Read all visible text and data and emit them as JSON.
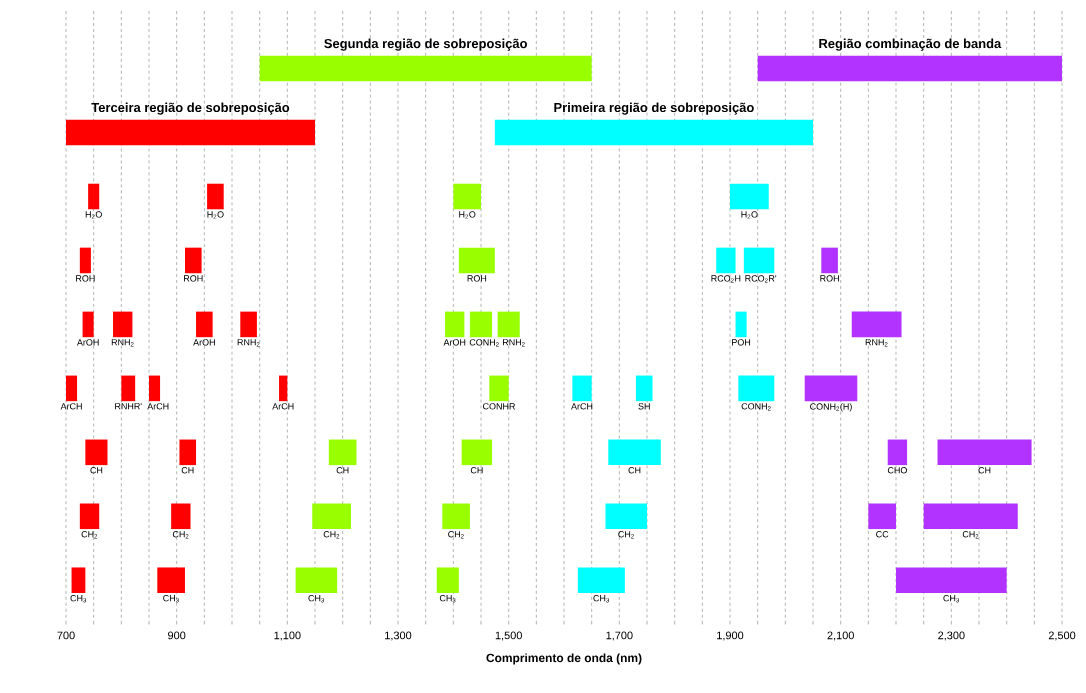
{
  "chart_data": {
    "type": "bar",
    "orientation": "horizontal",
    "xlabel": "Comprimento de onda (nm)",
    "categories": [
      null,
      null,
      null,
      null,
      null,
      null,
      null,
      null,
      null
    ],
    "xlim": [
      700,
      2500
    ],
    "xticks": [
      700,
      {
        "value": 750,
        "label": null
      },
      {
        "value": 800,
        "label": null
      },
      {
        "value": 850,
        "label": null
      },
      900,
      {
        "value": 950,
        "label": null
      },
      {
        "value": 1000,
        "label": null
      },
      {
        "value": 1050,
        "label": null
      },
      {
        "value": 1100,
        "label": "1,100"
      },
      {
        "value": 1150,
        "label": null
      },
      {
        "value": 1200,
        "label": null
      },
      {
        "value": 1250,
        "label": null
      },
      {
        "value": 1300,
        "label": "1,300"
      },
      {
        "value": 1350,
        "label": null
      },
      {
        "value": 1400,
        "label": null
      },
      {
        "value": 1450,
        "label": null
      },
      {
        "value": 1500,
        "label": "1,500"
      },
      {
        "value": 1550,
        "label": null
      },
      {
        "value": 1600,
        "label": null
      },
      {
        "value": 1650,
        "label": null
      },
      {
        "value": 1700,
        "label": "1,700"
      },
      {
        "value": 1750,
        "label": null
      },
      {
        "value": 1800,
        "label": null
      },
      {
        "value": 1850,
        "label": null
      },
      {
        "value": 1900,
        "label": "1,900"
      },
      {
        "value": 1950,
        "label": null
      },
      {
        "value": 2000,
        "label": null
      },
      {
        "value": 2050,
        "label": null
      },
      {
        "value": 2100,
        "label": "2,100"
      },
      {
        "value": 2150,
        "label": null
      },
      {
        "value": 2200,
        "label": null
      },
      {
        "value": 2250,
        "label": null
      },
      {
        "value": 2300,
        "label": "2,300"
      },
      {
        "value": 2350,
        "label": null
      },
      {
        "value": 2400,
        "label": null
      },
      {
        "value": 2450,
        "label": null
      },
      {
        "value": 2500,
        "label": "2,500"
      }
    ],
    "grid": "x",
    "series": [
      {
        "name": "Segunda região de sobreposição",
        "color": "#99ff00",
        "values": [
          600,
          null,
          null,
          null,
          null,
          null,
          null,
          null,
          null
        ],
        "base": [
          1050,
          null,
          null,
          null,
          null,
          null,
          null,
          null,
          null
        ]
      },
      {
        "name": "Região combinação de banda",
        "color": "#b233ff",
        "values": [
          550,
          null,
          null,
          null,
          null,
          null,
          null,
          null,
          null
        ],
        "base": [
          1950,
          null,
          null,
          null,
          null,
          null,
          null,
          null,
          null
        ]
      },
      {
        "name": "Terceira região de sobreposição",
        "color": "#ff0000",
        "values": [
          null,
          450,
          null,
          null,
          null,
          null,
          null,
          null,
          null
        ],
        "base": [
          null,
          700,
          null,
          null,
          null,
          null,
          null,
          null,
          null
        ]
      },
      {
        "name": "Primeira região de sobreposição",
        "color": "#00ffff",
        "values": [
          null,
          575,
          null,
          null,
          null,
          null,
          null,
          null,
          null
        ],
        "base": [
          null,
          1475,
          null,
          null,
          null,
          null,
          null,
          null,
          null
        ]
      },
      {
        "name": "H$_{2}$O",
        "color": "#ff0000",
        "values": [
          null,
          null,
          20,
          null,
          null,
          null,
          null,
          null,
          null
        ],
        "base": [
          null,
          null,
          740,
          null,
          null,
          null,
          null,
          null,
          null
        ]
      },
      {
        "name": "H$_{2}$O",
        "color": "#ff0000",
        "values": [
          null,
          null,
          30,
          null,
          null,
          null,
          null,
          null,
          null
        ],
        "base": [
          null,
          null,
          955,
          null,
          null,
          null,
          null,
          null,
          null
        ]
      },
      {
        "name": "H$_{2}$O",
        "color": "#99ff00",
        "values": [
          null,
          null,
          50,
          null,
          null,
          null,
          null,
          null,
          null
        ],
        "base": [
          null,
          null,
          1400,
          null,
          null,
          null,
          null,
          null,
          null
        ]
      },
      {
        "name": "H$_{2}$O",
        "color": "#00ffff",
        "values": [
          null,
          null,
          70,
          null,
          null,
          null,
          null,
          null,
          null
        ],
        "base": [
          null,
          null,
          1900,
          null,
          null,
          null,
          null,
          null,
          null
        ]
      },
      {
        "name": "ROH",
        "color": "#ff0000",
        "values": [
          null,
          null,
          null,
          20,
          null,
          null,
          null,
          null,
          null
        ],
        "base": [
          null,
          null,
          null,
          725,
          null,
          null,
          null,
          null,
          null
        ]
      },
      {
        "name": "ROH",
        "color": "#ff0000",
        "values": [
          null,
          null,
          null,
          30,
          null,
          null,
          null,
          null,
          null
        ],
        "base": [
          null,
          null,
          null,
          915,
          null,
          null,
          null,
          null,
          null
        ]
      },
      {
        "name": "ROH",
        "color": "#99ff00",
        "values": [
          null,
          null,
          null,
          65,
          null,
          null,
          null,
          null,
          null
        ],
        "base": [
          null,
          null,
          null,
          1410,
          null,
          null,
          null,
          null,
          null
        ]
      },
      {
        "name": "RCO$_{2}$H",
        "color": "#00ffff",
        "values": [
          null,
          null,
          null,
          35,
          null,
          null,
          null,
          null,
          null
        ],
        "base": [
          null,
          null,
          null,
          1875,
          null,
          null,
          null,
          null,
          null
        ]
      },
      {
        "name": "RCO$_{2}$R'",
        "color": "#00ffff",
        "values": [
          null,
          null,
          null,
          55,
          null,
          null,
          null,
          null,
          null
        ],
        "base": [
          null,
          null,
          null,
          1925,
          null,
          null,
          null,
          null,
          null
        ]
      },
      {
        "name": "ROH",
        "color": "#b233ff",
        "values": [
          null,
          null,
          null,
          30,
          null,
          null,
          null,
          null,
          null
        ],
        "base": [
          null,
          null,
          null,
          2065,
          null,
          null,
          null,
          null,
          null
        ]
      },
      {
        "name": "ArOH",
        "color": "#ff0000",
        "values": [
          null,
          null,
          null,
          null,
          20,
          null,
          null,
          null,
          null
        ],
        "base": [
          null,
          null,
          null,
          null,
          730,
          null,
          null,
          null,
          null
        ]
      },
      {
        "name": "RNH$_{2}$",
        "color": "#ff0000",
        "values": [
          null,
          null,
          null,
          null,
          35,
          null,
          null,
          null,
          null
        ],
        "base": [
          null,
          null,
          null,
          null,
          785,
          null,
          null,
          null,
          null
        ]
      },
      {
        "name": "ArOH",
        "color": "#ff0000",
        "values": [
          null,
          null,
          null,
          null,
          30,
          null,
          null,
          null,
          null
        ],
        "base": [
          null,
          null,
          null,
          null,
          935,
          null,
          null,
          null,
          null
        ]
      },
      {
        "name": "RNH$_{2}$",
        "color": "#ff0000",
        "values": [
          null,
          null,
          null,
          null,
          30,
          null,
          null,
          null,
          null
        ],
        "base": [
          null,
          null,
          null,
          null,
          1015,
          null,
          null,
          null,
          null
        ]
      },
      {
        "name": "ArOH",
        "color": "#99ff00",
        "values": [
          null,
          null,
          null,
          null,
          35,
          null,
          null,
          null,
          null
        ],
        "base": [
          null,
          null,
          null,
          null,
          1385,
          null,
          null,
          null,
          null
        ]
      },
      {
        "name": "CONH$_{2}$",
        "color": "#99ff00",
        "values": [
          null,
          null,
          null,
          null,
          40,
          null,
          null,
          null,
          null
        ],
        "base": [
          null,
          null,
          null,
          null,
          1430,
          null,
          null,
          null,
          null
        ]
      },
      {
        "name": "RNH$_{2}$",
        "color": "#99ff00",
        "values": [
          null,
          null,
          null,
          null,
          40,
          null,
          null,
          null,
          null
        ],
        "base": [
          null,
          null,
          null,
          null,
          1480,
          null,
          null,
          null,
          null
        ]
      },
      {
        "name": "POH",
        "color": "#00ffff",
        "values": [
          null,
          null,
          null,
          null,
          20,
          null,
          null,
          null,
          null
        ],
        "base": [
          null,
          null,
          null,
          null,
          1910,
          null,
          null,
          null,
          null
        ]
      },
      {
        "name": "RNH$_{2}$",
        "color": "#b233ff",
        "values": [
          null,
          null,
          null,
          null,
          90,
          null,
          null,
          null,
          null
        ],
        "base": [
          null,
          null,
          null,
          null,
          2120,
          null,
          null,
          null,
          null
        ]
      },
      {
        "name": "ArCH",
        "color": "#ff0000",
        "values": [
          null,
          null,
          null,
          null,
          null,
          20,
          null,
          null,
          null
        ],
        "base": [
          null,
          null,
          null,
          null,
          null,
          700,
          null,
          null,
          null
        ]
      },
      {
        "name": "RNHR'",
        "color": "#ff0000",
        "values": [
          null,
          null,
          null,
          null,
          null,
          25,
          null,
          null,
          null
        ],
        "base": [
          null,
          null,
          null,
          null,
          null,
          800,
          null,
          null,
          null
        ]
      },
      {
        "name": "ArCH",
        "color": "#ff0000",
        "values": [
          null,
          null,
          null,
          null,
          null,
          20,
          null,
          null,
          null
        ],
        "base": [
          null,
          null,
          null,
          null,
          null,
          850,
          null,
          null,
          null
        ]
      },
      {
        "name": "ArCH",
        "color": "#ff0000",
        "values": [
          null,
          null,
          null,
          null,
          null,
          15,
          null,
          null,
          null
        ],
        "base": [
          null,
          null,
          null,
          null,
          null,
          1085,
          null,
          null,
          null
        ]
      },
      {
        "name": "CONHR",
        "color": "#99ff00",
        "values": [
          null,
          null,
          null,
          null,
          null,
          35,
          null,
          null,
          null
        ],
        "base": [
          null,
          null,
          null,
          null,
          null,
          1465,
          null,
          null,
          null
        ]
      },
      {
        "name": "ArCH",
        "color": "#00ffff",
        "values": [
          null,
          null,
          null,
          null,
          null,
          35,
          null,
          null,
          null
        ],
        "base": [
          null,
          null,
          null,
          null,
          null,
          1615,
          null,
          null,
          null
        ]
      },
      {
        "name": "SH",
        "color": "#00ffff",
        "values": [
          null,
          null,
          null,
          null,
          null,
          30,
          null,
          null,
          null
        ],
        "base": [
          null,
          null,
          null,
          null,
          null,
          1730,
          null,
          null,
          null
        ]
      },
      {
        "name": "CONH$_{2}$",
        "color": "#00ffff",
        "values": [
          null,
          null,
          null,
          null,
          null,
          65,
          null,
          null,
          null
        ],
        "base": [
          null,
          null,
          null,
          null,
          null,
          1915,
          null,
          null,
          null
        ]
      },
      {
        "name": "CONH$_{2}$(H)",
        "color": "#b233ff",
        "values": [
          null,
          null,
          null,
          null,
          null,
          95,
          null,
          null,
          null
        ],
        "base": [
          null,
          null,
          null,
          null,
          null,
          2035,
          null,
          null,
          null
        ]
      },
      {
        "name": "CH",
        "color": "#ff0000",
        "values": [
          null,
          null,
          null,
          null,
          null,
          null,
          40,
          null,
          null
        ],
        "base": [
          null,
          null,
          null,
          null,
          null,
          null,
          735,
          null,
          null
        ]
      },
      {
        "name": "CH",
        "color": "#ff0000",
        "values": [
          null,
          null,
          null,
          null,
          null,
          null,
          30,
          null,
          null
        ],
        "base": [
          null,
          null,
          null,
          null,
          null,
          null,
          905,
          null,
          null
        ]
      },
      {
        "name": "CH",
        "color": "#99ff00",
        "values": [
          null,
          null,
          null,
          null,
          null,
          null,
          50,
          null,
          null
        ],
        "base": [
          null,
          null,
          null,
          null,
          null,
          null,
          1175,
          null,
          null
        ]
      },
      {
        "name": "CH",
        "color": "#99ff00",
        "values": [
          null,
          null,
          null,
          null,
          null,
          null,
          55,
          null,
          null
        ],
        "base": [
          null,
          null,
          null,
          null,
          null,
          null,
          1415,
          null,
          null
        ]
      },
      {
        "name": "CH",
        "color": "#00ffff",
        "values": [
          null,
          null,
          null,
          null,
          null,
          null,
          95,
          null,
          null
        ],
        "base": [
          null,
          null,
          null,
          null,
          null,
          null,
          1680,
          null,
          null
        ]
      },
      {
        "name": "CHO",
        "color": "#b233ff",
        "values": [
          null,
          null,
          null,
          null,
          null,
          null,
          35,
          null,
          null
        ],
        "base": [
          null,
          null,
          null,
          null,
          null,
          null,
          2185,
          null,
          null
        ]
      },
      {
        "name": "CH",
        "color": "#b233ff",
        "values": [
          null,
          null,
          null,
          null,
          null,
          null,
          170,
          null,
          null
        ],
        "base": [
          null,
          null,
          null,
          null,
          null,
          null,
          2275,
          null,
          null
        ]
      },
      {
        "name": "CH$_{2}$",
        "color": "#ff0000",
        "values": [
          null,
          null,
          null,
          null,
          null,
          null,
          null,
          35,
          null
        ],
        "base": [
          null,
          null,
          null,
          null,
          null,
          null,
          null,
          725,
          null
        ]
      },
      {
        "name": "CH$_{2}$",
        "color": "#ff0000",
        "values": [
          null,
          null,
          null,
          null,
          null,
          null,
          null,
          35,
          null
        ],
        "base": [
          null,
          null,
          null,
          null,
          null,
          null,
          null,
          890,
          null
        ]
      },
      {
        "name": "CH$_{2}$",
        "color": "#99ff00",
        "values": [
          null,
          null,
          null,
          null,
          null,
          null,
          null,
          70,
          null
        ],
        "base": [
          null,
          null,
          null,
          null,
          null,
          null,
          null,
          1145,
          null
        ]
      },
      {
        "name": "CH$_{2}$",
        "color": "#99ff00",
        "values": [
          null,
          null,
          null,
          null,
          null,
          null,
          null,
          50,
          null
        ],
        "base": [
          null,
          null,
          null,
          null,
          null,
          null,
          null,
          1380,
          null
        ]
      },
      {
        "name": "CH$_{2}$",
        "color": "#00ffff",
        "values": [
          null,
          null,
          null,
          null,
          null,
          null,
          null,
          75,
          null
        ],
        "base": [
          null,
          null,
          null,
          null,
          null,
          null,
          null,
          1675,
          null
        ]
      },
      {
        "name": "CC",
        "color": "#b233ff",
        "values": [
          null,
          null,
          null,
          null,
          null,
          null,
          null,
          50,
          null
        ],
        "base": [
          null,
          null,
          null,
          null,
          null,
          null,
          null,
          2150,
          null
        ]
      },
      {
        "name": "CH$_{2}$",
        "color": "#b233ff",
        "values": [
          null,
          null,
          null,
          null,
          null,
          null,
          null,
          170,
          null
        ],
        "base": [
          null,
          null,
          null,
          null,
          null,
          null,
          null,
          2250,
          null
        ]
      },
      {
        "name": "CH$_{3}$",
        "color": "#ff0000",
        "values": [
          null,
          null,
          null,
          null,
          null,
          null,
          null,
          null,
          25
        ],
        "base": [
          null,
          null,
          null,
          null,
          null,
          null,
          null,
          null,
          710
        ]
      },
      {
        "name": "CH$_{3}$",
        "color": "#ff0000",
        "values": [
          null,
          null,
          null,
          null,
          null,
          null,
          null,
          null,
          50
        ],
        "base": [
          null,
          null,
          null,
          null,
          null,
          null,
          null,
          null,
          865
        ]
      },
      {
        "name": "CH$_{3}$",
        "color": "#99ff00",
        "values": [
          null,
          null,
          null,
          null,
          null,
          null,
          null,
          null,
          75
        ],
        "base": [
          null,
          null,
          null,
          null,
          null,
          null,
          null,
          null,
          1115
        ]
      },
      {
        "name": "CH$_{3}$",
        "color": "#99ff00",
        "values": [
          null,
          null,
          null,
          null,
          null,
          null,
          null,
          null,
          40
        ],
        "base": [
          null,
          null,
          null,
          null,
          null,
          null,
          null,
          null,
          1370
        ]
      },
      {
        "name": "CH$_{3}$",
        "color": "#00ffff",
        "values": [
          null,
          null,
          null,
          null,
          null,
          null,
          null,
          null,
          85
        ],
        "base": [
          null,
          null,
          null,
          null,
          null,
          null,
          null,
          null,
          1625
        ]
      },
      {
        "name": "CH$_{3}$",
        "color": "#b233ff",
        "values": [
          null,
          null,
          null,
          null,
          null,
          null,
          null,
          null,
          200
        ],
        "base": [
          null,
          null,
          null,
          null,
          null,
          null,
          null,
          null,
          2200
        ]
      }
    ]
  }
}
